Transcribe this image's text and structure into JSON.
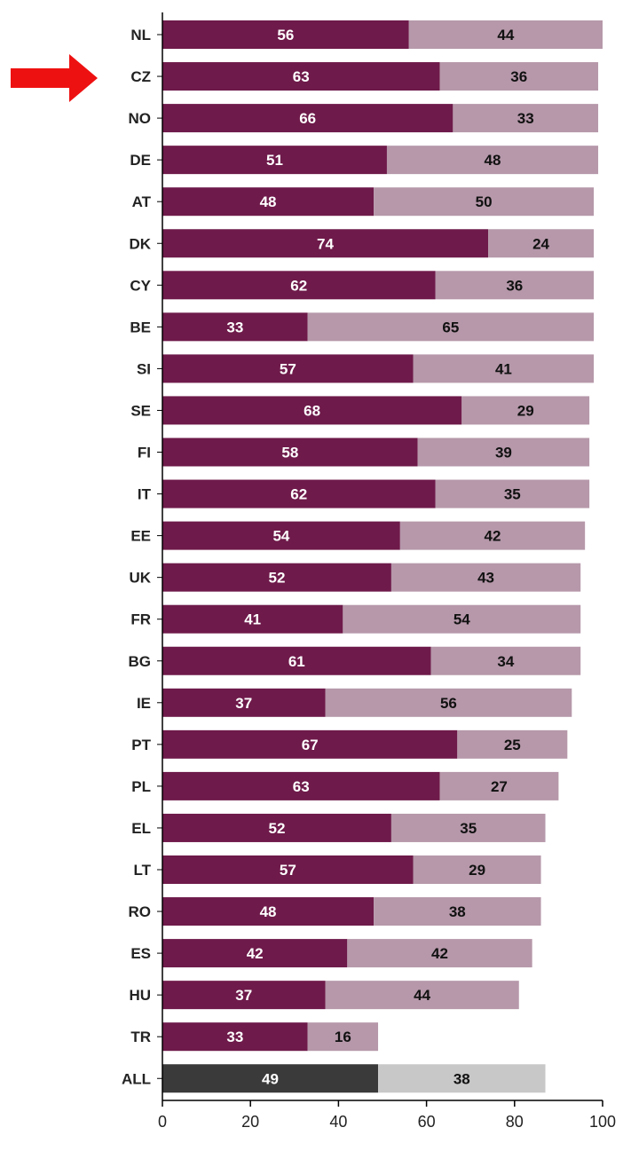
{
  "chart_data": {
    "type": "bar",
    "orientation": "horizontal",
    "stacked": true,
    "categories": [
      "NL",
      "CZ",
      "NO",
      "DE",
      "AT",
      "DK",
      "CY",
      "BE",
      "SI",
      "SE",
      "FI",
      "IT",
      "EE",
      "UK",
      "FR",
      "BG",
      "IE",
      "PT",
      "PL",
      "EL",
      "LT",
      "RO",
      "ES",
      "HU",
      "TR",
      "ALL"
    ],
    "series": [
      {
        "values": [
          56,
          63,
          66,
          51,
          48,
          74,
          62,
          33,
          57,
          68,
          58,
          62,
          54,
          52,
          41,
          61,
          37,
          67,
          63,
          52,
          57,
          48,
          42,
          37,
          33,
          49
        ]
      },
      {
        "values": [
          44,
          36,
          33,
          48,
          50,
          24,
          36,
          65,
          41,
          29,
          39,
          35,
          42,
          43,
          54,
          34,
          56,
          25,
          27,
          35,
          29,
          38,
          42,
          44,
          16,
          38
        ]
      }
    ],
    "xlim": [
      0,
      100
    ],
    "x_ticks": [
      "0",
      "20",
      "40",
      "60",
      "80",
      "100"
    ],
    "highlighted_category": "CZ",
    "grid": false,
    "colors": {
      "series1": "#6e1a4a",
      "series2": "#b698aa",
      "total_series1": "#3a3a3a",
      "total_series2": "#c8c8c8",
      "arrow": "#ee1111",
      "axis": "#000000"
    }
  }
}
